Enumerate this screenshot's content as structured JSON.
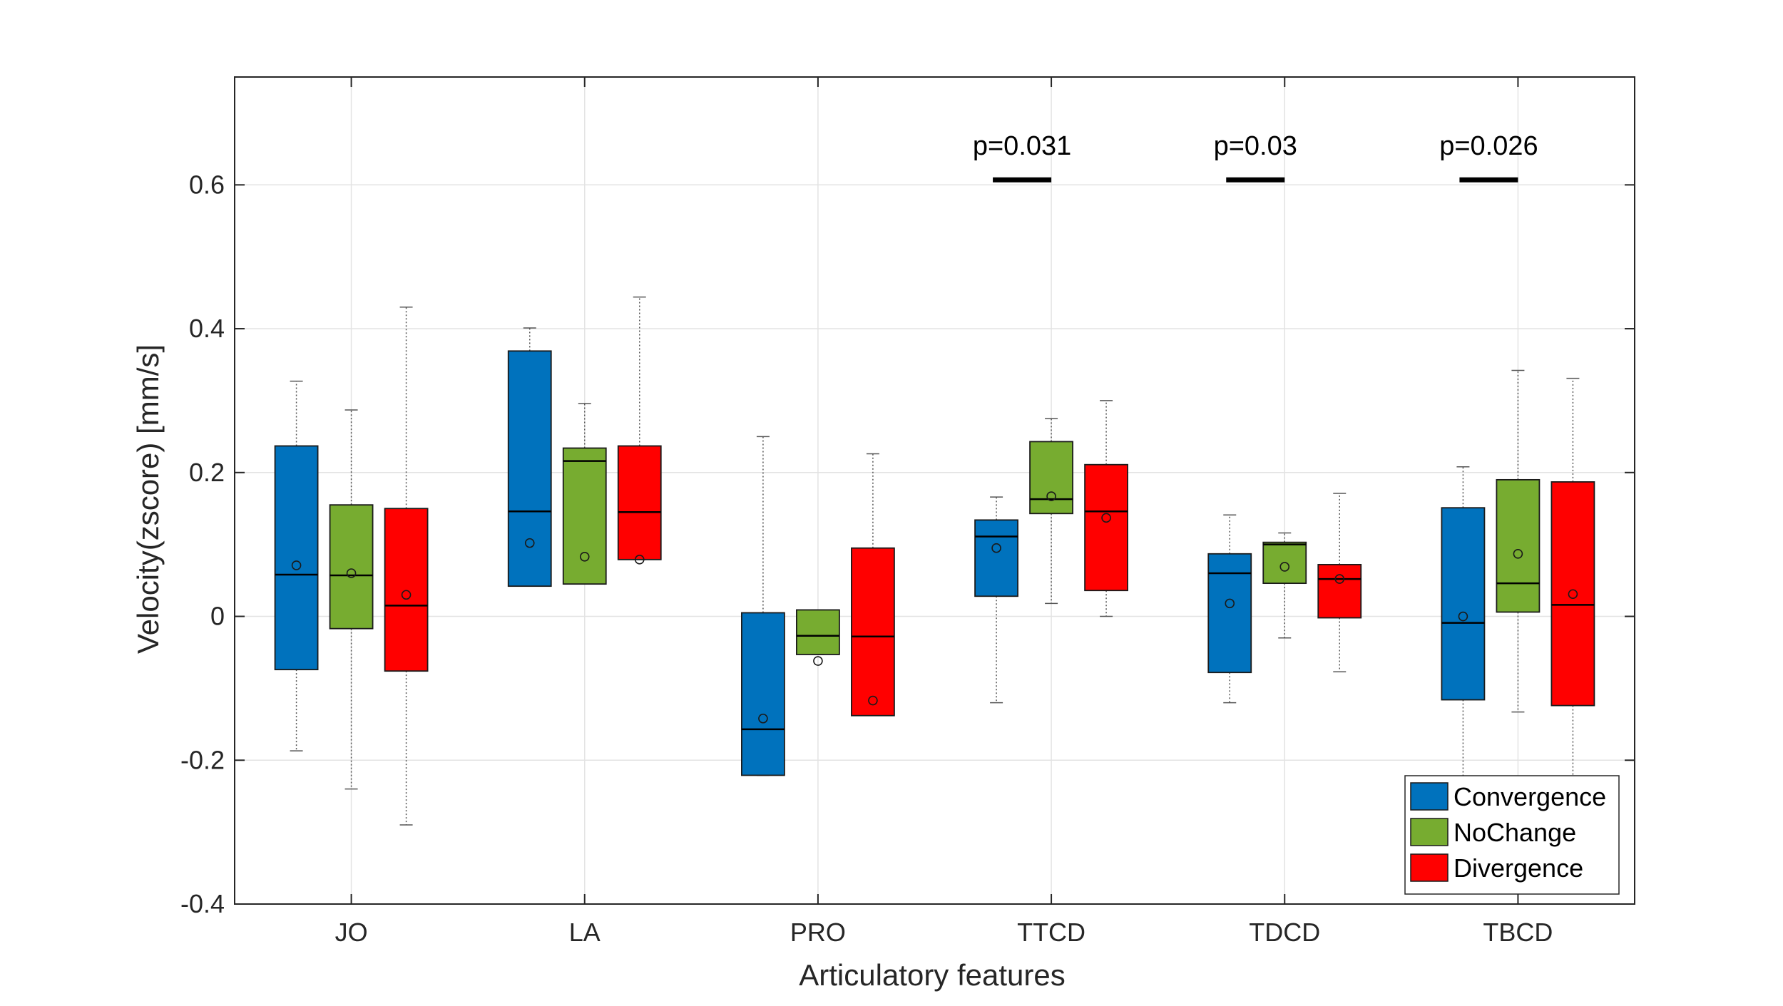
{
  "chart_data": {
    "type": "box",
    "xlabel": "Articulatory features",
    "ylabel": "Velocity(zscore) [mm/s]",
    "ylim": [
      -0.4,
      0.75
    ],
    "yticks": [
      -0.4,
      -0.2,
      0,
      0.2,
      0.4,
      0.6
    ],
    "ytick_labels": [
      "-0.4",
      "-0.2",
      "0",
      "0.2",
      "0.4",
      "0.6"
    ],
    "grid": true,
    "legend_position": "bottom-right",
    "categories": [
      "JO",
      "LA",
      "PRO",
      "TTCD",
      "TDCD",
      "TBCD"
    ],
    "series": [
      {
        "name": "Convergence",
        "color": "#0072BD",
        "boxes": [
          {
            "whisker_low": -0.187,
            "q1": -0.074,
            "median": 0.058,
            "q3": 0.237,
            "whisker_high": 0.327,
            "mean": 0.071
          },
          {
            "whisker_low": 0.042,
            "q1": 0.042,
            "median": 0.146,
            "q3": 0.369,
            "whisker_high": 0.401,
            "mean": 0.102
          },
          {
            "whisker_low": -0.221,
            "q1": -0.221,
            "median": -0.157,
            "q3": 0.005,
            "whisker_high": 0.25,
            "mean": -0.142
          },
          {
            "whisker_low": -0.12,
            "q1": 0.028,
            "median": 0.111,
            "q3": 0.134,
            "whisker_high": 0.166,
            "mean": 0.095
          },
          {
            "whisker_low": -0.12,
            "q1": -0.078,
            "median": 0.06,
            "q3": 0.087,
            "whisker_high": 0.141,
            "mean": 0.018
          },
          {
            "whisker_low": -0.24,
            "q1": -0.116,
            "median": -0.009,
            "q3": 0.151,
            "whisker_high": 0.208,
            "mean": 0.0
          }
        ]
      },
      {
        "name": "NoChange",
        "color": "#77AC30",
        "boxes": [
          {
            "whisker_low": -0.24,
            "q1": -0.017,
            "median": 0.057,
            "q3": 0.155,
            "whisker_high": 0.287,
            "mean": 0.06
          },
          {
            "whisker_low": 0.045,
            "q1": 0.045,
            "median": 0.216,
            "q3": 0.234,
            "whisker_high": 0.296,
            "mean": 0.083
          },
          {
            "whisker_low": -0.053,
            "q1": -0.053,
            "median": -0.027,
            "q3": 0.009,
            "whisker_high": 0.009,
            "mean": -0.062
          },
          {
            "whisker_low": 0.018,
            "q1": 0.143,
            "median": 0.163,
            "q3": 0.243,
            "whisker_high": 0.275,
            "mean": 0.167
          },
          {
            "whisker_low": -0.03,
            "q1": 0.046,
            "median": 0.1,
            "q3": 0.103,
            "whisker_high": 0.116,
            "mean": 0.069
          },
          {
            "whisker_low": -0.133,
            "q1": 0.006,
            "median": 0.046,
            "q3": 0.19,
            "whisker_high": 0.342,
            "mean": 0.087
          }
        ]
      },
      {
        "name": "Divergence",
        "color": "#FF0000",
        "boxes": [
          {
            "whisker_low": -0.29,
            "q1": -0.076,
            "median": 0.015,
            "q3": 0.15,
            "whisker_high": 0.43,
            "mean": 0.03
          },
          {
            "whisker_low": 0.079,
            "q1": 0.079,
            "median": 0.145,
            "q3": 0.237,
            "whisker_high": 0.444,
            "mean": 0.079
          },
          {
            "whisker_low": -0.138,
            "q1": -0.138,
            "median": -0.028,
            "q3": 0.095,
            "whisker_high": 0.226,
            "mean": -0.117
          },
          {
            "whisker_low": 0.0,
            "q1": 0.036,
            "median": 0.146,
            "q3": 0.211,
            "whisker_high": 0.3,
            "mean": 0.137
          },
          {
            "whisker_low": -0.077,
            "q1": -0.002,
            "median": 0.052,
            "q3": 0.072,
            "whisker_high": 0.171,
            "mean": 0.052
          },
          {
            "whisker_low": -0.24,
            "q1": -0.124,
            "median": 0.016,
            "q3": 0.187,
            "whisker_high": 0.331,
            "mean": 0.031
          }
        ]
      }
    ],
    "annotations": [
      {
        "category": "TTCD",
        "text": "p=0.031",
        "bar_y": 0.607
      },
      {
        "category": "TDCD",
        "text": "p=0.03",
        "bar_y": 0.607
      },
      {
        "category": "TBCD",
        "text": "p=0.026",
        "bar_y": 0.607
      }
    ]
  }
}
